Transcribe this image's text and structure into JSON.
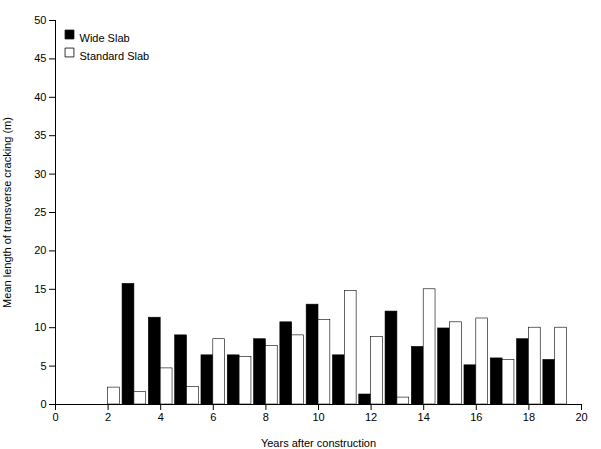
{
  "chart_data": {
    "type": "bar",
    "x": [
      2,
      3,
      4,
      5,
      6,
      7,
      8,
      9,
      10,
      11,
      12,
      13,
      14,
      15,
      16,
      17,
      18,
      19
    ],
    "series": [
      {
        "name": "Wide Slab",
        "color": "#000000",
        "values": [
          null,
          15.7,
          11.3,
          9.0,
          6.4,
          6.4,
          8.5,
          10.7,
          13.0,
          6.4,
          1.3,
          12.1,
          7.5,
          9.9,
          5.1,
          6.0,
          8.5,
          5.8
        ]
      },
      {
        "name": "Standard Slab",
        "color": "#ffffff",
        "values": [
          2.2,
          1.6,
          4.7,
          2.3,
          8.5,
          6.2,
          7.6,
          9.0,
          11.0,
          14.8,
          8.8,
          0.9,
          15.0,
          10.7,
          11.2,
          5.8,
          10.0,
          10.0
        ]
      }
    ],
    "xlabel": "Years after construction",
    "ylabel": "Mean length of transverse cracking (m)",
    "xlim": [
      0,
      20
    ],
    "ylim": [
      0,
      50
    ],
    "xticks": [
      0,
      2,
      4,
      6,
      8,
      10,
      12,
      14,
      16,
      18,
      20
    ],
    "yticks": [
      0,
      5,
      10,
      15,
      20,
      25,
      30,
      35,
      40,
      45,
      50
    ],
    "legend": "upper left",
    "grid": false
  }
}
